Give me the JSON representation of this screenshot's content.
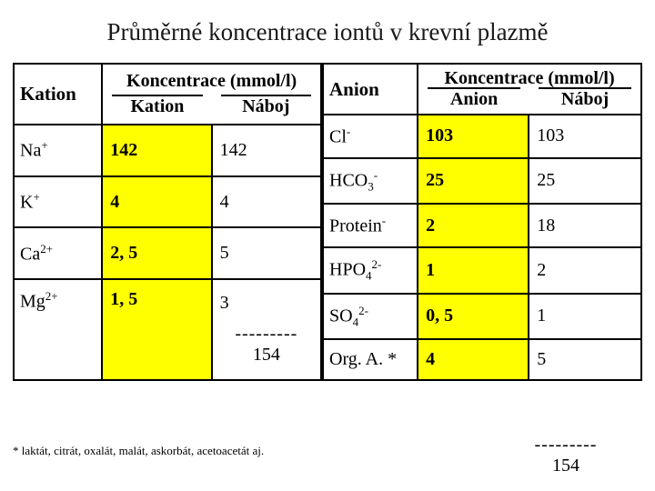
{
  "title": "Průměrné koncentrace iontů v krevní plazmě",
  "columns": {
    "kation": "Kation",
    "anion": "Anion",
    "conc_header": "Koncentrace (mmol/l)",
    "naboj": "Náboj"
  },
  "kations": [
    {
      "ion_html": "Na<sup>+</sup>",
      "conc": "142",
      "naboj": "142"
    },
    {
      "ion_html": "K<sup>+</sup>",
      "conc": "4",
      "naboj": "4"
    },
    {
      "ion_html": "Ca<sup>2+</sup>",
      "conc": "2, 5",
      "naboj": "5"
    },
    {
      "ion_html": "Mg<sup>2+</sup>",
      "conc": "1, 5",
      "naboj": "3"
    }
  ],
  "kation_sum": {
    "dashes": "---------",
    "value": "154"
  },
  "anions": [
    {
      "ion_html": "Cl<sup>-</sup>",
      "conc": "103",
      "naboj": "103"
    },
    {
      "ion_html": "HCO<sub>3</sub><sup>-</sup>",
      "conc": "25",
      "naboj": "25"
    },
    {
      "ion_html": "Protein<sup>-</sup>",
      "conc": "2",
      "naboj": "18"
    },
    {
      "ion_html": "HPO<sub>4</sub><sup>2-</sup>",
      "conc": "1",
      "naboj": "2"
    },
    {
      "ion_html": "SO<sub>4</sub><sup>2-</sup>",
      "conc": "0, 5",
      "naboj": "1"
    },
    {
      "ion_html": "Org. A. *",
      "conc": "4",
      "naboj": "5"
    }
  ],
  "anion_sum": {
    "dashes": "---------",
    "value": "154"
  },
  "footnote": "* laktát, citrát, oxalát, malát, askorbát, acetoacetát aj.",
  "colors": {
    "highlight": "#ffff00",
    "border": "#000000",
    "background": "#ffffff",
    "text": "#1a1a1a"
  },
  "type": "table"
}
